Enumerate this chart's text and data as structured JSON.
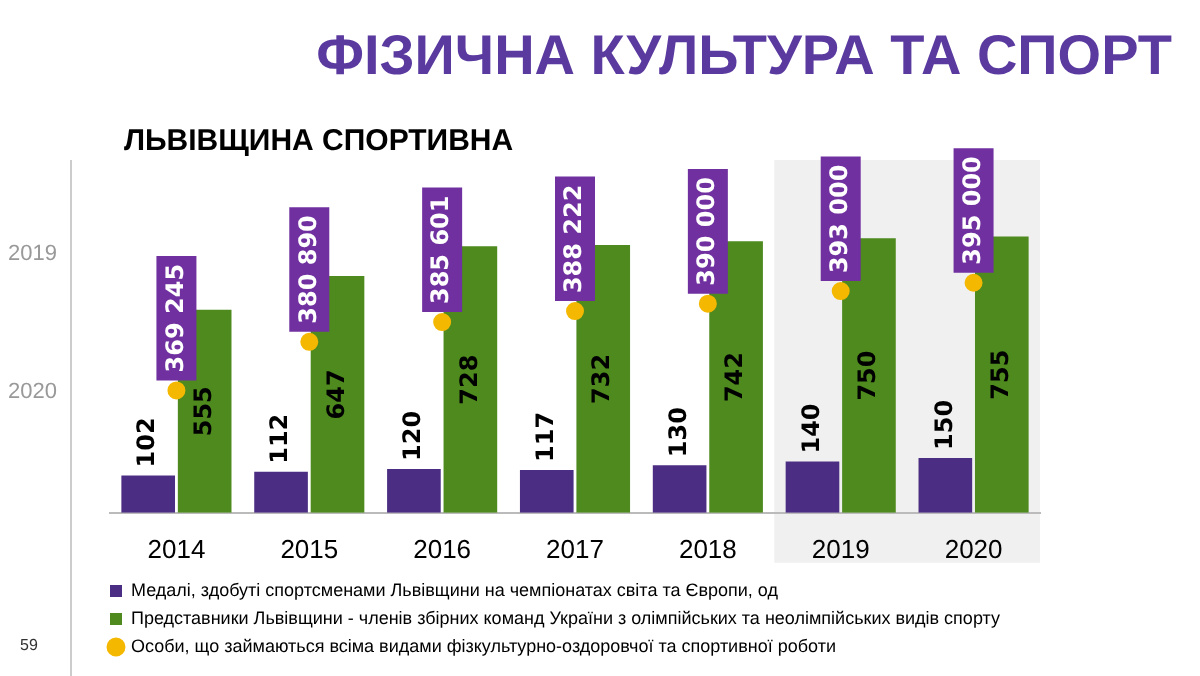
{
  "chart_data": {
    "type": "bar",
    "title": "ФІЗИЧНА КУЛЬТУРА ТА СПОРТ",
    "subtitle": "ЛЬВІВЩИНА СПОРТИВНА",
    "categories": [
      "2014",
      "2015",
      "2016",
      "2017",
      "2018",
      "2019",
      "2020"
    ],
    "series": [
      {
        "name": "Медалі, здобуті спортсменами Львівщини на чемпіонатах світа та Європи, од",
        "color": "#4b2e83",
        "values": [
          102,
          112,
          120,
          117,
          130,
          140,
          150
        ]
      },
      {
        "name": "Представники Львівщини - членів збірних команд України з олімпійських та неолімпійських видів спорту",
        "color": "#4e8a1e",
        "values": [
          555,
          647,
          728,
          732,
          742,
          750,
          755
        ]
      },
      {
        "name": "Особи, що займаються всіма видами фізкультурно-оздоровчої та спортивної роботи",
        "color": "#f5b800",
        "type": "scatter",
        "axis": "y2",
        "values": [
          369245,
          380890,
          385601,
          388222,
          390000,
          393000,
          395000
        ]
      }
    ],
    "data_labels": true,
    "legend": "bottom",
    "marker": "circle",
    "grid": false,
    "bands": [
      {
        "axis": "x",
        "from": "2019",
        "to": "2020",
        "color": "#f0f0f0"
      }
    ],
    "annotations": [
      "2019",
      "2020",
      "59"
    ]
  }
}
